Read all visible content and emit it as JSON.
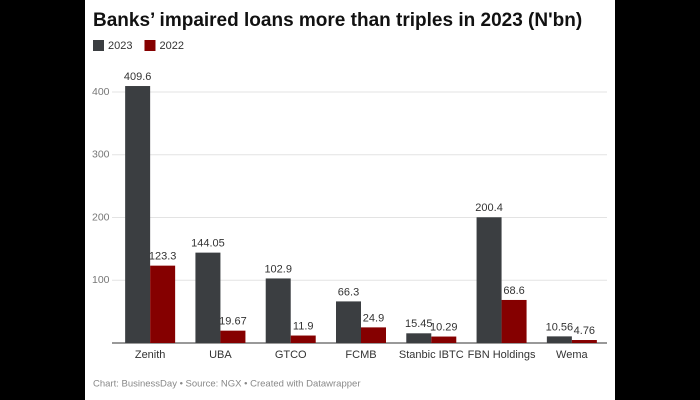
{
  "chart_data": {
    "type": "bar",
    "title": "Banks’ impaired loans more than triples in 2023 (N'bn)",
    "categories": [
      "Zenith",
      "UBA",
      "GTCO",
      "FCMB",
      "Stanbic IBTC",
      "FBN Holdings",
      "Wema"
    ],
    "series": [
      {
        "name": "2023",
        "color": "#3b3e41",
        "values": [
          409.6,
          144.05,
          102.9,
          66.3,
          15.45,
          200.4,
          10.56
        ]
      },
      {
        "name": "2022",
        "color": "#850000",
        "values": [
          123.3,
          19.67,
          11.9,
          24.9,
          10.29,
          68.6,
          4.76
        ]
      }
    ],
    "ylim": [
      0,
      420
    ],
    "yticks": [
      100,
      200,
      300,
      400
    ],
    "grid": true,
    "source": "Chart: BusinessDay • Source: NGX • Created with Datawrapper"
  }
}
